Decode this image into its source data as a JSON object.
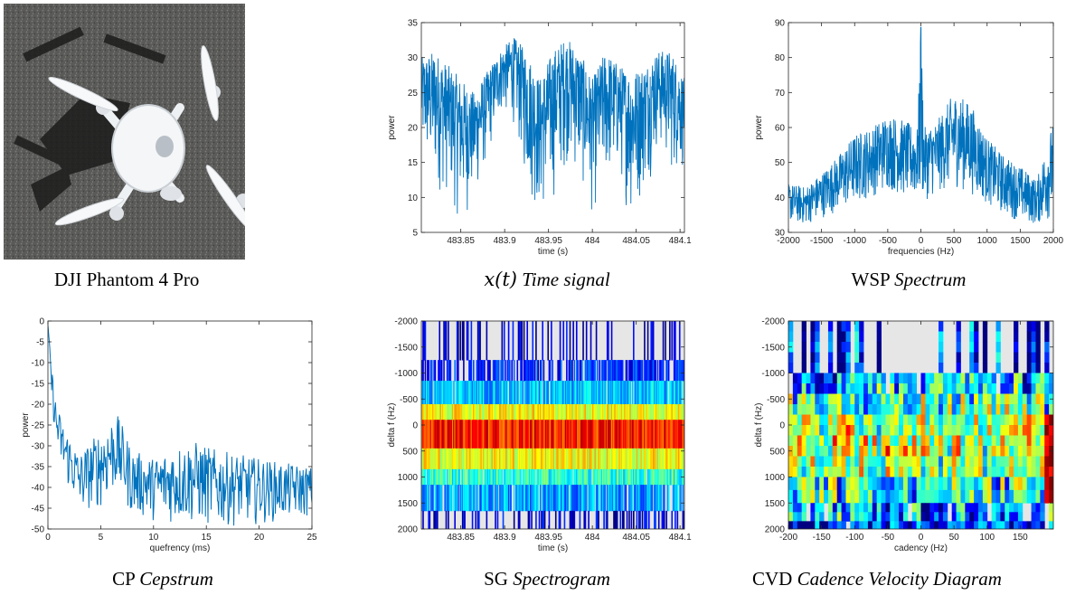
{
  "captions": {
    "photo": "DJI Phantom 4 Pro",
    "time_math": "x(t)",
    "time_text": "Time signal",
    "wsp_prefix": "WSP",
    "wsp_text": "Spectrum",
    "cp_prefix": "CP",
    "cp_text": "Cepstrum",
    "sg_prefix": "SG",
    "sg_text": "Spectrogram",
    "cvd_prefix": "CVD",
    "cvd_text": "Cadence Velocity Diagram"
  },
  "colors": {
    "line": "#0072bd",
    "grey": "#e6e6e6"
  },
  "chart_data": [
    {
      "id": "time",
      "type": "line",
      "xlabel": "time (s)",
      "ylabel": "power",
      "xlim": [
        483.805,
        484.105
      ],
      "ylim": [
        5,
        35
      ],
      "xticks": [
        483.85,
        483.9,
        483.95,
        484,
        484.05,
        484.1
      ],
      "xtick_labels": [
        "483.85",
        "483.9",
        "483.95",
        "484",
        "484.05",
        "484.1"
      ],
      "yticks": [
        5,
        10,
        15,
        20,
        25,
        30,
        35
      ],
      "envelope": {
        "x": [
          483.805,
          483.82,
          483.835,
          483.85,
          483.865,
          483.88,
          483.895,
          483.91,
          483.925,
          483.94,
          483.955,
          483.97,
          483.985,
          484.0,
          484.015,
          484.03,
          484.045,
          484.06,
          484.075,
          484.09,
          484.105
        ],
        "upper": [
          30,
          31,
          29,
          27,
          25,
          28,
          31,
          33,
          31,
          27,
          31,
          33,
          31,
          27,
          31,
          29,
          28,
          29,
          31,
          31,
          27
        ],
        "lower": [
          14,
          10,
          9,
          5,
          8,
          14,
          21,
          20,
          10,
          5,
          8,
          14,
          11,
          6,
          10,
          12,
          5,
          10,
          16,
          12,
          13
        ]
      }
    },
    {
      "id": "wsp",
      "type": "line",
      "xlabel": "frequencies (Hz)",
      "ylabel": "power",
      "xlim": [
        -2000,
        2000
      ],
      "ylim": [
        30,
        90
      ],
      "xticks": [
        -2000,
        -1500,
        -1000,
        -500,
        0,
        500,
        1000,
        1500,
        2000
      ],
      "yticks": [
        30,
        40,
        50,
        60,
        70,
        80,
        90
      ],
      "envelope": {
        "x": [
          -2000,
          -1750,
          -1500,
          -1250,
          -1000,
          -750,
          -500,
          -250,
          -50,
          0,
          50,
          250,
          500,
          750,
          1000,
          1250,
          1500,
          1750,
          2000
        ],
        "upper": [
          44,
          43,
          47,
          52,
          58,
          60,
          64,
          62,
          60,
          90,
          60,
          62,
          70,
          67,
          57,
          52,
          49,
          45,
          62
        ],
        "lower": [
          33,
          32,
          34,
          36,
          38,
          40,
          42,
          40,
          39,
          38,
          39,
          41,
          43,
          41,
          38,
          35,
          33,
          32,
          34
        ]
      }
    },
    {
      "id": "cp",
      "type": "line",
      "xlabel": "quefrency (ms)",
      "ylabel": "power",
      "xlim": [
        0,
        25
      ],
      "ylim": [
        -50,
        0
      ],
      "xticks": [
        0,
        5,
        10,
        15,
        20,
        25
      ],
      "yticks": [
        0,
        -5,
        -10,
        -15,
        -20,
        -25,
        -30,
        -35,
        -40,
        -45,
        -50
      ],
      "envelope": {
        "x": [
          0,
          0.3,
          0.8,
          1.5,
          3,
          5,
          6.5,
          8,
          10,
          12,
          14,
          16,
          18,
          20,
          22,
          25
        ],
        "upper": [
          -1,
          -10,
          -20,
          -25,
          -32,
          -26,
          -22,
          -31,
          -33,
          -30,
          -29,
          -31,
          -32,
          -33,
          -34,
          -35
        ],
        "lower": [
          -5,
          -18,
          -31,
          -38,
          -46,
          -45,
          -41,
          -47,
          -48,
          -49,
          -49,
          -50,
          -49,
          -49,
          -48,
          -47
        ]
      }
    },
    {
      "id": "sg",
      "type": "heatmap",
      "xlabel": "time (s)",
      "ylabel": "delta f (Hz)",
      "xlim": [
        483.805,
        484.105
      ],
      "ylim": [
        -2000,
        2000
      ],
      "xticks": [
        483.85,
        483.9,
        483.95,
        484,
        484.05,
        484.1
      ],
      "xtick_labels": [
        "483.85",
        "483.9",
        "483.95",
        "484",
        "484.05",
        "484.1"
      ],
      "yticks": [
        -2000,
        -1500,
        -1000,
        -500,
        0,
        500,
        1000,
        1500,
        2000
      ],
      "bands": [
        {
          "from": -2000,
          "to": -1250,
          "level": 0.06,
          "fill": 0.25
        },
        {
          "from": -1250,
          "to": -850,
          "level": 0.15,
          "fill": 0.7
        },
        {
          "from": -850,
          "to": -400,
          "level": 0.32,
          "fill": 0.95
        },
        {
          "from": -400,
          "to": -100,
          "level": 0.62,
          "fill": 1.0
        },
        {
          "from": -100,
          "to": 450,
          "level": 0.85,
          "fill": 1.0
        },
        {
          "from": 450,
          "to": 850,
          "level": 0.62,
          "fill": 1.0
        },
        {
          "from": 850,
          "to": 1150,
          "level": 0.42,
          "fill": 0.95
        },
        {
          "from": 1150,
          "to": 1650,
          "level": 0.28,
          "fill": 0.85
        },
        {
          "from": 1650,
          "to": 2000,
          "level": 0.08,
          "fill": 0.3
        }
      ]
    },
    {
      "id": "cvd",
      "type": "heatmap",
      "xlabel": "cadency (Hz)",
      "ylabel": "delta f (Hz)",
      "xlim": [
        -200,
        200
      ],
      "ylim": [
        -2000,
        2000
      ],
      "xticks": [
        -200,
        -150,
        -100,
        -50,
        0,
        50,
        100,
        150
      ],
      "yticks": [
        -2000,
        -1500,
        -1000,
        -500,
        0,
        500,
        1000,
        1500,
        2000
      ],
      "bands": [
        {
          "from": -2000,
          "to": -1000,
          "level": 0.1,
          "fill": 0.35
        },
        {
          "from": -1000,
          "to": -600,
          "level": 0.3,
          "fill": 0.95
        },
        {
          "from": -600,
          "to": -200,
          "level": 0.45,
          "fill": 1.0
        },
        {
          "from": -200,
          "to": 200,
          "level": 0.55,
          "fill": 1.0
        },
        {
          "from": 200,
          "to": 600,
          "level": 0.58,
          "fill": 1.0
        },
        {
          "from": 600,
          "to": 1000,
          "level": 0.5,
          "fill": 1.0
        },
        {
          "from": 1000,
          "to": 1500,
          "level": 0.4,
          "fill": 1.0
        },
        {
          "from": 1500,
          "to": 1850,
          "level": 0.25,
          "fill": 0.9
        },
        {
          "from": 1850,
          "to": 2000,
          "level": 0.15,
          "fill": 0.9
        }
      ]
    }
  ]
}
